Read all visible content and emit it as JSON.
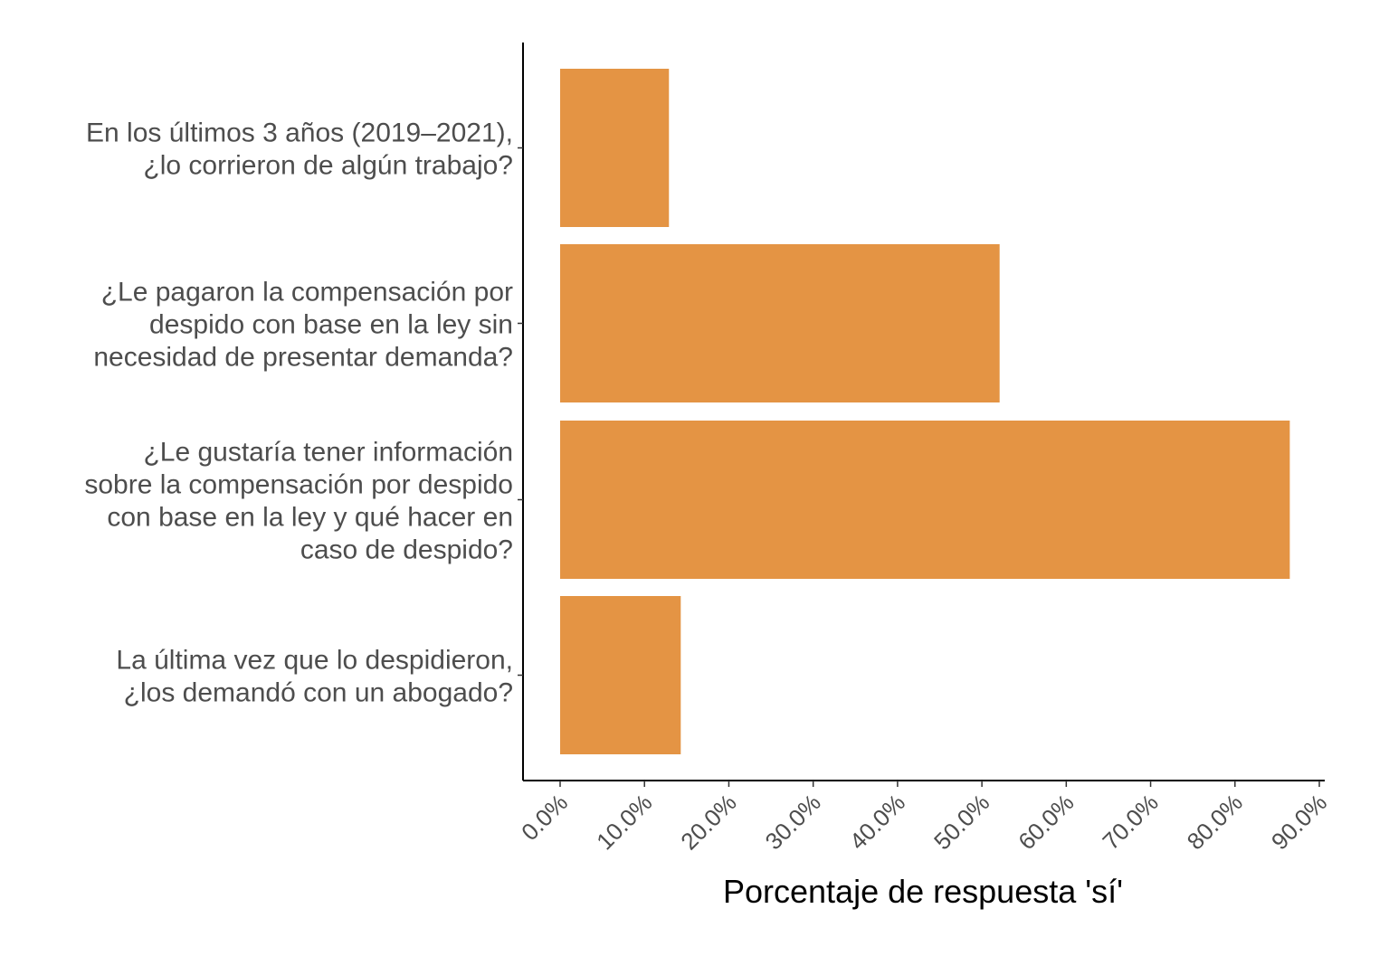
{
  "chart_data": {
    "type": "bar",
    "orientation": "horizontal",
    "title": "",
    "xlabel": "Porcentaje de respuesta 'sí'",
    "ylabel": "",
    "xlim": [
      0,
      90
    ],
    "x_ticks": [
      "0.0%",
      "10.0%",
      "20.0%",
      "30.0%",
      "40.0%",
      "50.0%",
      "60.0%",
      "70.0%",
      "80.0%",
      "90.0%"
    ],
    "grid": false,
    "legend": "none",
    "bar_color": "#E49444",
    "categories": [
      [
        "En los últimos 3 años (2019–2021),",
        "¿lo corrieron de algún trabajo?"
      ],
      [
        "¿Le pagaron la compensación por",
        "despido con base en la ley sin",
        "necesidad de presentar demanda?"
      ],
      [
        "¿Le gustaría tener información",
        "sobre la compensación por despido",
        "con base en la ley y qué hacer en",
        "caso de despido?"
      ],
      [
        "La última vez que lo despidieron,",
        "¿los demandó con un abogado?"
      ]
    ],
    "values": [
      12.9,
      52.1,
      86.5,
      14.3
    ]
  }
}
